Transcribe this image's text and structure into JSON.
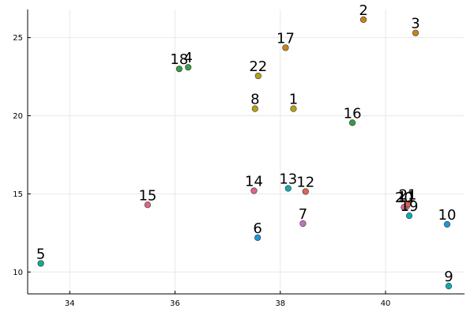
{
  "chart_data": {
    "type": "scatter",
    "title": "",
    "xlabel": "",
    "ylabel": "",
    "xlim": [
      33.2,
      41.5
    ],
    "ylim": [
      8.6,
      26.8
    ],
    "xticks": [
      34,
      36,
      38,
      40
    ],
    "yticks": [
      10,
      15,
      20,
      25
    ],
    "grid": true,
    "legend": "none",
    "points": [
      {
        "label": "1",
        "x": 38.25,
        "y": 20.45,
        "color": "#b2a213"
      },
      {
        "label": "2",
        "x": 39.58,
        "y": 26.15,
        "color": "#c8841a"
      },
      {
        "label": "3",
        "x": 40.57,
        "y": 25.3,
        "color": "#c8841a"
      },
      {
        "label": "4",
        "x": 36.25,
        "y": 23.1,
        "color": "#3a9a44"
      },
      {
        "label": "5",
        "x": 33.45,
        "y": 10.55,
        "color": "#13a98f"
      },
      {
        "label": "6",
        "x": 37.57,
        "y": 12.2,
        "color": "#1f97d8"
      },
      {
        "label": "7",
        "x": 38.43,
        "y": 13.1,
        "color": "#c86fc2"
      },
      {
        "label": "8",
        "x": 37.52,
        "y": 20.45,
        "color": "#b2a213"
      },
      {
        "label": "9",
        "x": 41.2,
        "y": 9.1,
        "color": "#13a9b4"
      },
      {
        "label": "10",
        "x": 41.17,
        "y": 13.05,
        "color": "#1f97d8"
      },
      {
        "label": "11",
        "x": 40.4,
        "y": 14.2,
        "color": "#c86fc2"
      },
      {
        "label": "12",
        "x": 38.48,
        "y": 15.15,
        "color": "#e0654f"
      },
      {
        "label": "13",
        "x": 38.15,
        "y": 15.35,
        "color": "#13a9b4"
      },
      {
        "label": "14",
        "x": 37.5,
        "y": 15.2,
        "color": "#e06583"
      },
      {
        "label": "15",
        "x": 35.48,
        "y": 14.3,
        "color": "#e06583"
      },
      {
        "label": "16",
        "x": 39.37,
        "y": 19.55,
        "color": "#3a9a44"
      },
      {
        "label": "17",
        "x": 38.1,
        "y": 24.35,
        "color": "#c8841a"
      },
      {
        "label": "18",
        "x": 36.08,
        "y": 23.0,
        "color": "#3a9a44"
      },
      {
        "label": "19",
        "x": 40.45,
        "y": 13.6,
        "color": "#13a9b4"
      },
      {
        "label": "20",
        "x": 40.35,
        "y": 14.15,
        "color": "#e06583"
      },
      {
        "label": "21",
        "x": 40.42,
        "y": 14.35,
        "color": "#e0654f"
      },
      {
        "label": "22",
        "x": 37.58,
        "y": 22.55,
        "color": "#b2a213"
      }
    ]
  }
}
